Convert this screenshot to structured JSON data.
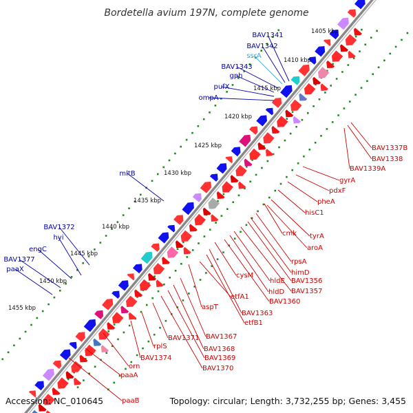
{
  "title": "Bordetella avium 197N, complete genome",
  "footer": {
    "accession": "Accession: NC_010645",
    "summary": "Topology: circular; Length: 3,732,255 bp; Genes: 3,455"
  },
  "colors": {
    "forward_labels": "#0000aa",
    "reverse_labels": "#cc0000",
    "rna_label": "#33aadd",
    "backbone": "#777777",
    "ticks": "#228822"
  },
  "kbp_ticks": [
    "1405 kbp",
    "1410 kbp",
    "1415 kbp",
    "1420 kbp",
    "1425 kbp",
    "1430 kbp",
    "1435 kbp",
    "1440 kbp",
    "1445 kbp",
    "1450 kbp",
    "1455 kbp"
  ],
  "forward_genes": [
    "BAV1341",
    "BAV1342",
    "BAV1343",
    "gph",
    "pufX",
    "ompA",
    "mltB",
    "BAV1372",
    "hyi",
    "engC",
    "BAV1377",
    "paaX"
  ],
  "rna_genes": [
    "ssrA"
  ],
  "reverse_genes": [
    "BAV1337B",
    "BAV1338",
    "BAV1339A",
    "gyrA",
    "pdxF",
    "pheA",
    "hisC1",
    "cmk",
    "tyrA",
    "aroA",
    "rpsA",
    "himD",
    "BAV1356",
    "BAV1357",
    "hldE",
    "hldD",
    "BAV1360",
    "cysM",
    "BAV1363",
    "etfB1",
    "etfA1",
    "aspT",
    "BAV1367",
    "BAV1368",
    "BAV1369",
    "BAV1370",
    "BAV1371",
    "BAV1374",
    "rplS",
    "orn",
    "paaA",
    "paaB"
  ]
}
